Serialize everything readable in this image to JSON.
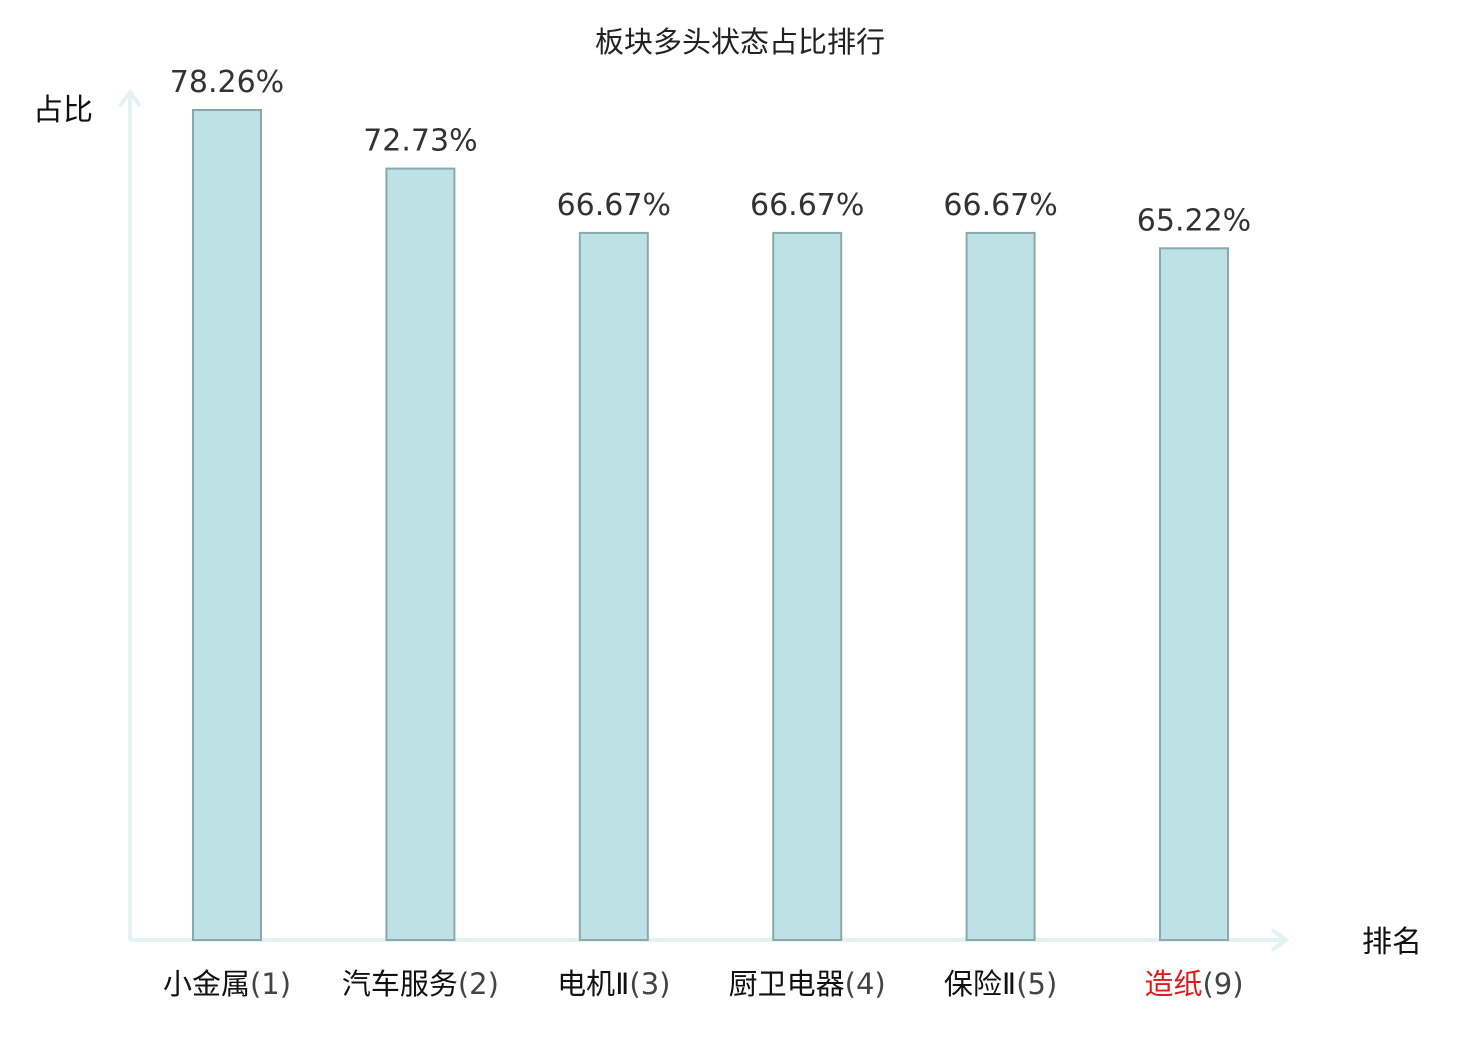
{
  "chart_data": {
    "type": "bar",
    "title": "板块多头状态占比排行",
    "xlabel": "排名",
    "ylabel": "占比",
    "ylim": [
      0,
      78.26
    ],
    "grid": false,
    "legend": "none",
    "categories": [
      "小金属",
      "汽车服务",
      "电机Ⅱ",
      "厨卫电器",
      "保险Ⅱ",
      "造纸"
    ],
    "ranks": [
      "(1)",
      "(2)",
      "(3)",
      "(4)",
      "(5)",
      "(9)"
    ],
    "values": [
      78.26,
      72.73,
      66.67,
      66.67,
      66.67,
      65.22
    ],
    "value_labels": [
      "78.26%",
      "72.73%",
      "66.67%",
      "66.67%",
      "66.67%",
      "65.22%"
    ],
    "highlight_index": 5
  },
  "colors": {
    "bar_fill": "#bde1e4",
    "bar_stroke": "#89a9ad",
    "axis": "#e2f3f1",
    "highlight_label": "#e0191b"
  }
}
